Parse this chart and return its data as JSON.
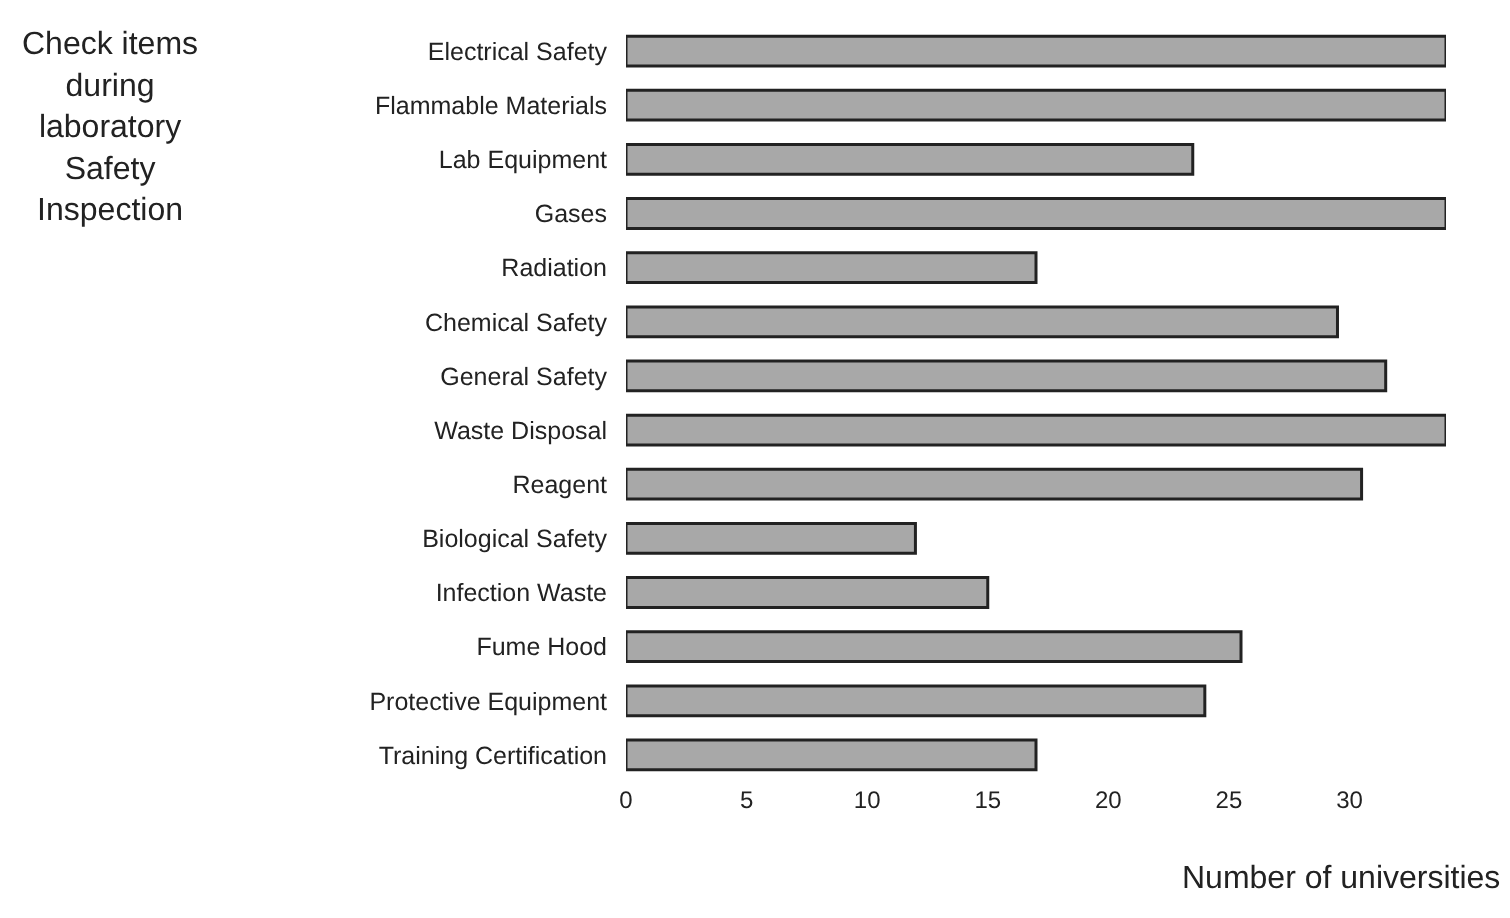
{
  "chart_data": {
    "type": "bar",
    "orientation": "horizontal",
    "annotations": [
      "Check items during laboratory Safety Inspection"
    ],
    "xlabel": "Number of universities",
    "categories": [
      "Electrical Safety",
      "Flammable Materials",
      "Lab Equipment",
      "Gases",
      "Radiation",
      "Chemical Safety",
      "General Safety",
      "Waste Disposal",
      "Reagent",
      "Biological Safety",
      "Infection Waste",
      "Fume Hood",
      "Protective Equipment",
      "Training Certification"
    ],
    "values": [
      34,
      34,
      23.5,
      34,
      17,
      29.5,
      31.5,
      34,
      30.5,
      12,
      15,
      25.5,
      24,
      17
    ],
    "color": "#a8a8a8",
    "xlim": [
      0,
      34
    ],
    "xticks": [
      0,
      5,
      10,
      15,
      20,
      25,
      30
    ],
    "grid": false
  }
}
